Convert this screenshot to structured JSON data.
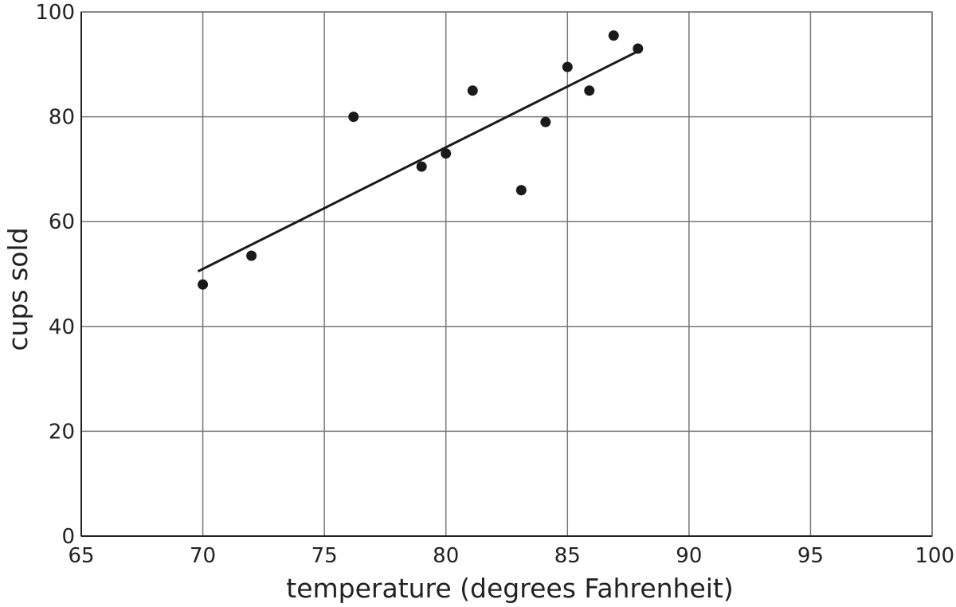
{
  "chart_data": {
    "type": "scatter",
    "xlabel": "temperature (degrees Fahrenheit)",
    "ylabel": "cups sold",
    "xlim": [
      65,
      100
    ],
    "ylim": [
      0,
      100
    ],
    "x_ticks": [
      65,
      70,
      75,
      80,
      85,
      90,
      95,
      100
    ],
    "y_ticks": [
      0,
      20,
      40,
      60,
      80,
      100
    ],
    "grid": true,
    "points": [
      {
        "x": 70,
        "y": 48
      },
      {
        "x": 72,
        "y": 53.5
      },
      {
        "x": 76.2,
        "y": 80
      },
      {
        "x": 79,
        "y": 70.5
      },
      {
        "x": 80,
        "y": 73
      },
      {
        "x": 81.1,
        "y": 85
      },
      {
        "x": 83.1,
        "y": 66
      },
      {
        "x": 84.1,
        "y": 79
      },
      {
        "x": 85,
        "y": 89.5
      },
      {
        "x": 85.9,
        "y": 85
      },
      {
        "x": 86.9,
        "y": 95.5
      },
      {
        "x": 87.9,
        "y": 93
      }
    ],
    "trend_line": {
      "x": [
        69.8,
        87.9
      ],
      "y": [
        50.5,
        92.5
      ]
    }
  }
}
